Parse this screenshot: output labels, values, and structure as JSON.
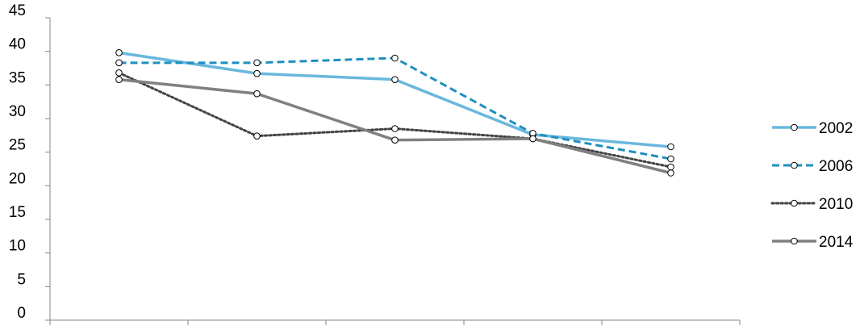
{
  "chart_data": {
    "type": "line",
    "title": "",
    "xlabel": "",
    "ylabel": "",
    "categories": [
      "",
      "",
      "",
      "",
      ""
    ],
    "ylim": [
      0,
      45
    ],
    "yticks": [
      0,
      5,
      10,
      15,
      20,
      25,
      30,
      35,
      40,
      45
    ],
    "grid": false,
    "legend_position": "right",
    "series": [
      {
        "name": "2002",
        "values": [
          39.8,
          36.7,
          35.8,
          27.6,
          25.8
        ],
        "color": "#6ab7dd",
        "dash": "solid"
      },
      {
        "name": "2006",
        "values": [
          38.3,
          38.3,
          39.0,
          27.8,
          24.0
        ],
        "color": "#1f8fbf",
        "dash": "dashed"
      },
      {
        "name": "2010",
        "values": [
          36.8,
          27.4,
          28.5,
          27.0,
          22.8
        ],
        "color": "#444444",
        "dash": "dotted"
      },
      {
        "name": "2014",
        "values": [
          35.8,
          33.7,
          26.8,
          27.0,
          21.9
        ],
        "color": "#808080",
        "dash": "solid"
      }
    ]
  }
}
